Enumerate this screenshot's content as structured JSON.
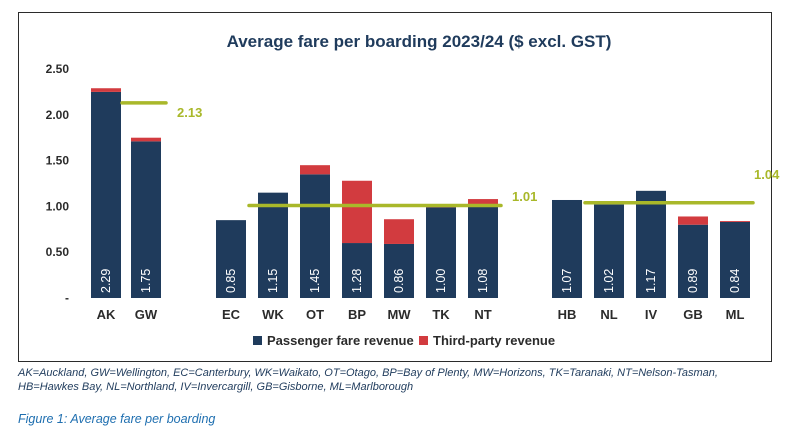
{
  "chart_data": {
    "type": "bar",
    "stacked": true,
    "title": "Average fare per boarding 2023/24 ($ excl. GST)",
    "y_tick_labels": [
      "2.50",
      "2.00",
      "1.50",
      "1.00",
      "0.50",
      "-"
    ],
    "ylim": [
      0,
      2.5
    ],
    "categories": [
      "AK",
      "GW",
      "EC",
      "WK",
      "OT",
      "BP",
      "MW",
      "TK",
      "NT",
      "HB",
      "NL",
      "IV",
      "GB",
      "ML"
    ],
    "groups": [
      [
        "AK",
        "GW"
      ],
      [
        "EC",
        "WK",
        "OT",
        "BP",
        "MW",
        "TK",
        "NT"
      ],
      [
        "HB",
        "NL",
        "IV",
        "GB",
        "ML"
      ]
    ],
    "series": [
      {
        "name": "Passenger fare revenue",
        "color": "#1f3b5c",
        "values": [
          2.25,
          1.71,
          0.85,
          1.15,
          1.35,
          0.6,
          0.59,
          0.99,
          1.02,
          1.07,
          1.02,
          1.17,
          0.8,
          0.83
        ]
      },
      {
        "name": "Third-party revenue",
        "color": "#d23b3f",
        "values": [
          0.04,
          0.04,
          0.0,
          0.0,
          0.1,
          0.68,
          0.27,
          0.01,
          0.06,
          0.0,
          0.0,
          0.0,
          0.09,
          0.01
        ]
      }
    ],
    "total_labels": [
      "2.29",
      "1.75",
      "0.85",
      "1.15",
      "1.45",
      "1.28",
      "0.86",
      "1.00",
      "1.08",
      "1.07",
      "1.02",
      "1.17",
      "0.89",
      "0.84"
    ],
    "group_averages": [
      {
        "value": 2.13,
        "label": "2.13"
      },
      {
        "value": 1.01,
        "label": "1.01"
      },
      {
        "value": 1.04,
        "label": "1.04"
      }
    ],
    "average_line_color": "#a9b82a",
    "grid": false,
    "legend_position": "bottom"
  },
  "footnote": "AK=Auckland, GW=Wellington, EC=Canterbury, WK=Waikato, OT=Otago, BP=Bay of Plenty, MW=Horizons, TK=Taranaki, NT=Nelson-Tasman, HB=Hawkes Bay, NL=Northland, IV=Invercargill, GB=Gisborne, ML=Marlborough",
  "caption": "Figure 1: Average fare per boarding"
}
